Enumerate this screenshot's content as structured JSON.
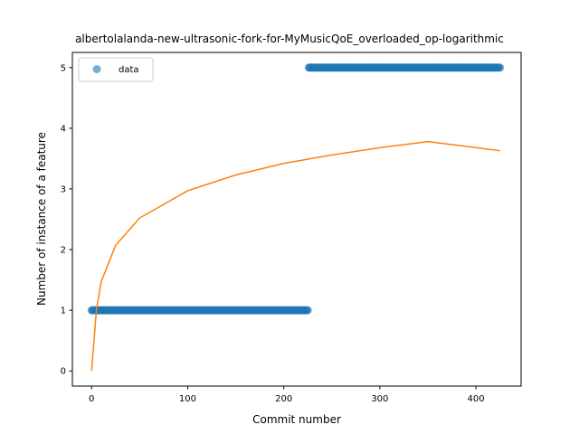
{
  "chart_data": {
    "type": "scatter",
    "title": "albertolalanda-new-ultrasonic-fork-for-MyMusicQoE_overloaded_op-logarithmic",
    "xlabel": "Commit number",
    "ylabel": "Number of instance of a feature",
    "xlim": [
      -20,
      447
    ],
    "ylim": [
      -0.25,
      5.25
    ],
    "xticks": [
      0,
      100,
      200,
      300,
      400
    ],
    "yticks": [
      0,
      1,
      2,
      3,
      4,
      5
    ],
    "legend": {
      "position": "top-left",
      "entries": [
        "data"
      ]
    },
    "grid": false,
    "series": [
      {
        "name": "data",
        "kind": "scatter",
        "color": "#1f77b4",
        "segments": [
          {
            "x_start": 0,
            "x_end": 225,
            "y": 1
          },
          {
            "x_start": 226,
            "x_end": 425,
            "y": 5
          }
        ]
      },
      {
        "kind": "line",
        "color": "#ff7f0e",
        "model": "logarithmic",
        "x_range": [
          0,
          425
        ],
        "points": [
          [
            0,
            0
          ],
          [
            5,
            1.0
          ],
          [
            10,
            1.47
          ],
          [
            25,
            2.07
          ],
          [
            50,
            2.52
          ],
          [
            100,
            2.97
          ],
          [
            150,
            3.23
          ],
          [
            200,
            3.42
          ],
          [
            250,
            3.56
          ],
          [
            300,
            3.68
          ],
          [
            350,
            3.78
          ],
          [
            425,
            3.63
          ]
        ]
      }
    ]
  }
}
